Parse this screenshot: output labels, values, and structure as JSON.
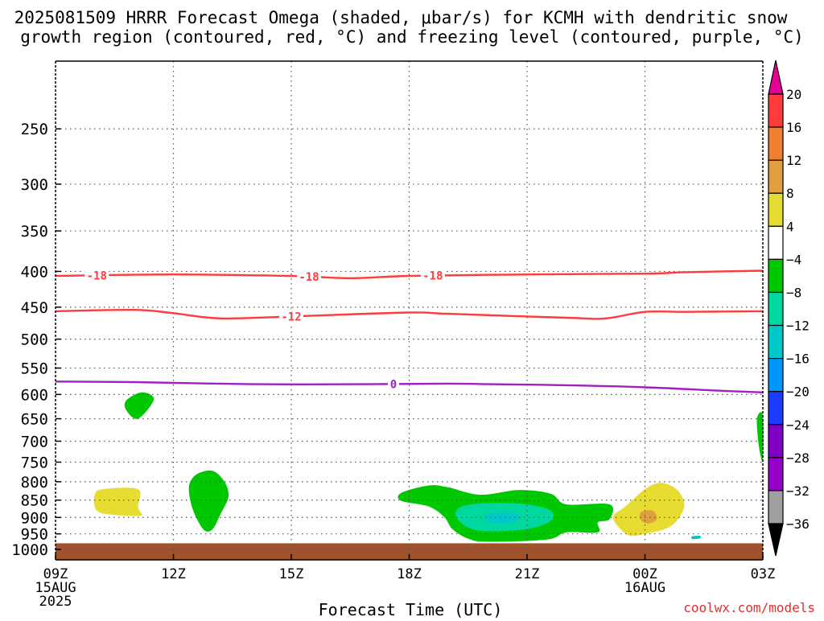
{
  "title": {
    "line1": "2025081509 HRRR Forecast Omega (shaded, μbar/s) for KCMH with dendritic snow",
    "line2": "growth region (contoured, red, °C) and freezing level (contoured, purple, °C)"
  },
  "credit": "coolwx.com/models",
  "chart_data": {
    "type": "contour",
    "xlabel": "Forecast Time (UTC)",
    "ylabel": "",
    "x_ticks": [
      {
        "hour": 0,
        "label": "09Z",
        "sub1": "15AUG",
        "sub2": "2025"
      },
      {
        "hour": 3,
        "label": "12Z",
        "sub1": "",
        "sub2": ""
      },
      {
        "hour": 6,
        "label": "15Z",
        "sub1": "",
        "sub2": ""
      },
      {
        "hour": 9,
        "label": "18Z",
        "sub1": "",
        "sub2": ""
      },
      {
        "hour": 12,
        "label": "21Z",
        "sub1": "",
        "sub2": ""
      },
      {
        "hour": 15,
        "label": "00Z",
        "sub1": "16AUG",
        "sub2": ""
      },
      {
        "hour": 18,
        "label": "03Z",
        "sub1": "",
        "sub2": ""
      }
    ],
    "xlim": [
      0,
      18
    ],
    "y_ticks": [
      250,
      300,
      350,
      400,
      450,
      500,
      550,
      600,
      650,
      700,
      750,
      800,
      850,
      900,
      950,
      1000
    ],
    "ylim_hPa": [
      1035,
      200
    ],
    "y_scale": "log-pressure",
    "grid": true,
    "ground": {
      "from_hPa": 980,
      "to_hPa": 1035,
      "color": "#a0522d"
    },
    "contours": [
      {
        "name": "-18",
        "color": "#ff3b3b",
        "label": "-18",
        "points": [
          [
            0,
            406
          ],
          [
            3,
            404
          ],
          [
            6,
            406
          ],
          [
            7.5,
            409
          ],
          [
            9,
            406
          ],
          [
            12,
            404
          ],
          [
            15,
            403
          ],
          [
            16,
            401
          ],
          [
            18,
            399
          ]
        ],
        "labels_at": [
          0.35,
          2.3,
          4.2
        ]
      },
      {
        "name": "-12",
        "color": "#ff3b3b",
        "label": "-12",
        "points": [
          [
            0,
            456
          ],
          [
            2,
            454
          ],
          [
            3,
            459
          ],
          [
            4.2,
            467
          ],
          [
            6,
            464
          ],
          [
            9,
            458
          ],
          [
            10,
            460
          ],
          [
            13,
            466
          ],
          [
            14,
            467
          ],
          [
            15,
            457
          ],
          [
            16,
            457
          ],
          [
            18,
            456
          ]
        ],
        "labels_at": [
          4.0
        ]
      },
      {
        "name": "0",
        "color": "#a020c0",
        "label": "0",
        "points": [
          [
            0,
            575
          ],
          [
            2,
            576
          ],
          [
            5,
            580
          ],
          [
            8,
            580
          ],
          [
            10,
            579
          ],
          [
            11,
            580
          ],
          [
            13,
            582
          ],
          [
            15,
            586
          ],
          [
            17,
            593
          ],
          [
            18,
            596
          ]
        ],
        "labels_at": [
          3.3
        ]
      }
    ],
    "shaded_regions": [
      {
        "name": "omega -4 to -8",
        "color": "#00c800",
        "points": [
          [
            1.8,
            612
          ],
          [
            2.2,
            596
          ],
          [
            2.5,
            610
          ],
          [
            2.1,
            650
          ],
          [
            1.8,
            632
          ]
        ]
      },
      {
        "name": "omega 4 to 8",
        "color": "#e6dc32",
        "points": [
          [
            1.2,
            820
          ],
          [
            2.1,
            820
          ],
          [
            2.1,
            870
          ],
          [
            2.2,
            893
          ],
          [
            1.9,
            895
          ],
          [
            1.2,
            888
          ],
          [
            1.0,
            870
          ],
          [
            1.0,
            835
          ]
        ]
      },
      {
        "name": "omega -4 to -8",
        "color": "#00c800",
        "points": [
          [
            3.6,
            780
          ],
          [
            4.0,
            772
          ],
          [
            4.3,
            800
          ],
          [
            4.4,
            840
          ],
          [
            4.2,
            890
          ],
          [
            4.0,
            935
          ],
          [
            3.8,
            940
          ],
          [
            3.6,
            905
          ],
          [
            3.45,
            860
          ],
          [
            3.4,
            810
          ]
        ]
      },
      {
        "name": "omega -4 to -8",
        "color": "#00c800",
        "points": [
          [
            8.8,
            830
          ],
          [
            9.5,
            810
          ],
          [
            10.0,
            815
          ],
          [
            10.8,
            835
          ],
          [
            11.8,
            822
          ],
          [
            12.6,
            832
          ],
          [
            13.0,
            862
          ],
          [
            14.1,
            862
          ],
          [
            14.1,
            905
          ],
          [
            13.8,
            915
          ],
          [
            13.8,
            945
          ],
          [
            13.0,
            945
          ],
          [
            12.5,
            968
          ],
          [
            11.0,
            975
          ],
          [
            10.5,
            965
          ],
          [
            10.1,
            935
          ],
          [
            9.9,
            900
          ],
          [
            9.5,
            868
          ],
          [
            8.8,
            852
          ]
        ]
      },
      {
        "name": "omega -8 to -12",
        "color": "#00d8a0",
        "points": [
          [
            10.3,
            870
          ],
          [
            11.0,
            858
          ],
          [
            12.0,
            862
          ],
          [
            12.6,
            880
          ],
          [
            12.6,
            910
          ],
          [
            12.0,
            935
          ],
          [
            11.0,
            942
          ],
          [
            10.5,
            930
          ],
          [
            10.2,
            900
          ]
        ]
      },
      {
        "name": "omega -12 to -16",
        "color": "#00c8c8",
        "points": [
          [
            11.0,
            890
          ],
          [
            11.6,
            885
          ],
          [
            11.8,
            905
          ],
          [
            11.4,
            918
          ],
          [
            11.0,
            910
          ]
        ]
      },
      {
        "name": "omega 4 to 8",
        "color": "#e6dc32",
        "points": [
          [
            15.0,
            820
          ],
          [
            15.4,
            803
          ],
          [
            15.8,
            820
          ],
          [
            16.0,
            858
          ],
          [
            15.9,
            895
          ],
          [
            15.6,
            930
          ],
          [
            15.0,
            950
          ],
          [
            14.6,
            955
          ],
          [
            14.3,
            925
          ],
          [
            14.2,
            895
          ],
          [
            14.5,
            868
          ]
        ]
      },
      {
        "name": "omega 8 to 12",
        "color": "#e0a040",
        "points": [
          [
            14.9,
            885
          ],
          [
            15.2,
            880
          ],
          [
            15.3,
            905
          ],
          [
            15.1,
            918
          ],
          [
            14.9,
            908
          ]
        ]
      },
      {
        "name": "omega -8 to -12",
        "color": "#00c8c8",
        "points": [
          [
            16.2,
            958
          ],
          [
            16.4,
            956
          ],
          [
            16.4,
            964
          ],
          [
            16.2,
            966
          ]
        ]
      },
      {
        "name": "omega -4 to -8",
        "color": "#00c800",
        "points": [
          [
            17.85,
            650
          ],
          [
            18,
            643
          ],
          [
            18,
            745
          ],
          [
            17.9,
            712
          ]
        ]
      }
    ],
    "colorbar": {
      "tick_labels": [
        "20",
        "16",
        "12",
        "8",
        "4",
        "−4",
        "−8",
        "−12",
        "−16",
        "−20",
        "−24",
        "−28",
        "−32",
        "−36"
      ],
      "colors": [
        "#ff3b3b",
        "#f08030",
        "#e0a040",
        "#e6dc32",
        "#ffffff",
        "#00c800",
        "#00d8a0",
        "#00c8c8",
        "#0096ff",
        "#1e3cff",
        "#8000c8",
        "#9600c8",
        "#a0a0a0"
      ],
      "top_arrow_color": "#e60096",
      "bottom_arrow_color": "#000000"
    }
  }
}
